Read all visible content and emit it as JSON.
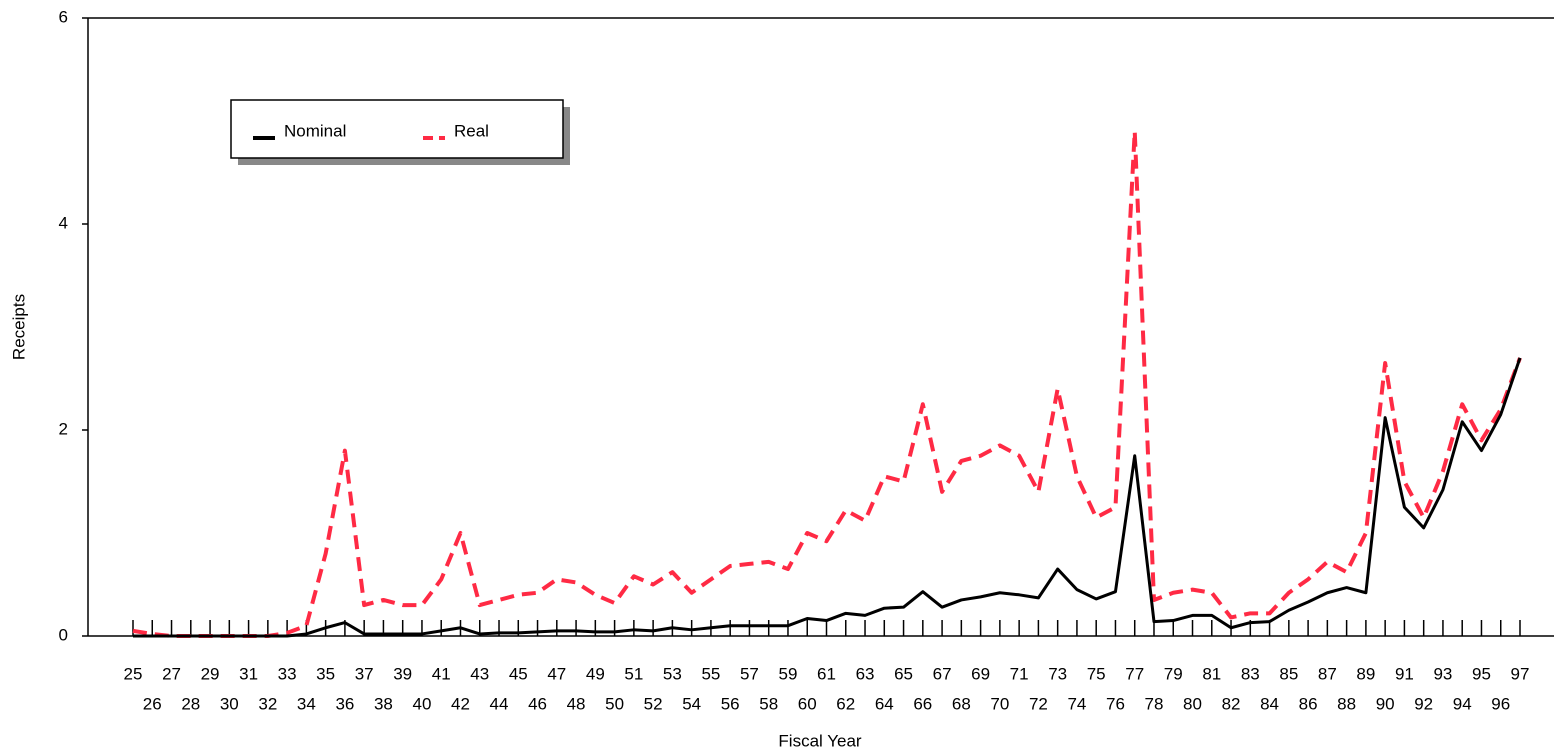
{
  "chart_data": {
    "type": "line",
    "x_label": "Fiscal Year",
    "y_label": "Receipts",
    "categories": [
      "25",
      "26",
      "27",
      "28",
      "29",
      "30",
      "31",
      "32",
      "33",
      "34",
      "35",
      "36",
      "37",
      "38",
      "39",
      "40",
      "41",
      "42",
      "43",
      "44",
      "45",
      "46",
      "47",
      "48",
      "49",
      "50",
      "51",
      "52",
      "53",
      "54",
      "55",
      "56",
      "57",
      "58",
      "59",
      "60",
      "61",
      "62",
      "63",
      "64",
      "65",
      "66",
      "67",
      "68",
      "69",
      "70",
      "71",
      "72",
      "73",
      "74",
      "75",
      "76",
      "77",
      "78",
      "79",
      "80",
      "81",
      "82",
      "83",
      "84",
      "85",
      "86",
      "87",
      "88",
      "89",
      "90",
      "91",
      "92",
      "93",
      "94",
      "95",
      "96",
      "97"
    ],
    "series": [
      {
        "name": "Nominal",
        "color": "#000000",
        "values": [
          0,
          0,
          0,
          0,
          0,
          0,
          0,
          0,
          0,
          0.02,
          0.08,
          0.13,
          0.02,
          0.02,
          0.02,
          0.02,
          0.05,
          0.08,
          0.02,
          0.03,
          0.03,
          0.04,
          0.05,
          0.05,
          0.04,
          0.04,
          0.06,
          0.05,
          0.08,
          0.06,
          0.08,
          0.1,
          0.1,
          0.1,
          0.1,
          0.17,
          0.15,
          0.22,
          0.2,
          0.27,
          0.28,
          0.43,
          0.28,
          0.35,
          0.38,
          0.42,
          0.4,
          0.37,
          0.65,
          0.45,
          0.36,
          0.43,
          1.75,
          0.14,
          0.15,
          0.2,
          0.2,
          0.08,
          0.13,
          0.14,
          0.25,
          0.33,
          0.42,
          0.47,
          0.42,
          2.12,
          1.25,
          1.05,
          1.42,
          2.08,
          1.8,
          2.15,
          2.7
        ]
      },
      {
        "name": "Real",
        "color": "#ff2a44",
        "values": [
          0.05,
          0.02,
          0,
          0,
          0,
          0,
          0,
          0,
          0.03,
          0.1,
          0.8,
          1.8,
          0.3,
          0.35,
          0.3,
          0.3,
          0.55,
          1.0,
          0.3,
          0.35,
          0.4,
          0.42,
          0.55,
          0.52,
          0.4,
          0.32,
          0.58,
          0.5,
          0.62,
          0.42,
          0.55,
          0.68,
          0.7,
          0.72,
          0.65,
          1.0,
          0.92,
          1.22,
          1.12,
          1.55,
          1.5,
          2.25,
          1.4,
          1.7,
          1.75,
          1.85,
          1.75,
          1.4,
          2.4,
          1.55,
          1.15,
          1.25,
          4.9,
          0.35,
          0.42,
          0.45,
          0.42,
          0.18,
          0.22,
          0.22,
          0.42,
          0.55,
          0.72,
          0.62,
          1.0,
          2.65,
          1.5,
          1.15,
          1.6,
          2.25,
          1.9,
          2.2,
          2.7
        ]
      }
    ],
    "ylim": [
      0,
      6
    ],
    "yticks": [
      0,
      2,
      4,
      6
    ],
    "legend": "upper left"
  }
}
